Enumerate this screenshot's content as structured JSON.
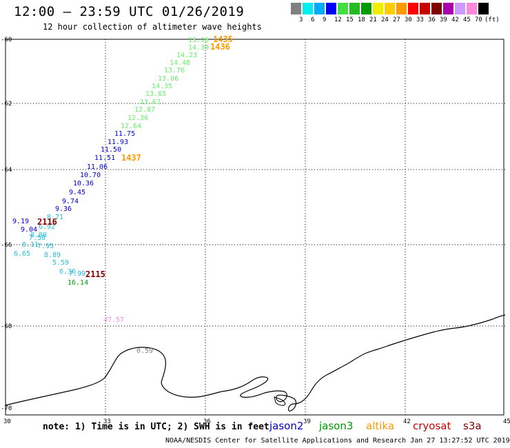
{
  "title": "12:00 – 23:59 UTC 01/26/2019",
  "subtitle": "12 hour collection of altimeter wave heights",
  "colorbar": {
    "unit": "(ft)",
    "ticks": [
      "3",
      "6",
      "9",
      "12",
      "15",
      "18",
      "21",
      "24",
      "27",
      "30",
      "33",
      "36",
      "39",
      "42",
      "45",
      "70"
    ],
    "colors": [
      "#808080",
      "#00eeee",
      "#00aaff",
      "#0000ff",
      "#44dd44",
      "#22bb22",
      "#009900",
      "#eeee00",
      "#ffcc00",
      "#ff9900",
      "#ff0000",
      "#cc0000",
      "#800000",
      "#aa00aa",
      "#cc99ff",
      "#ff88dd",
      "#000000"
    ]
  },
  "axes": {
    "lon_ticks": [
      "30",
      "33",
      "36",
      "39",
      "42",
      "45"
    ],
    "lat_ticks": [
      "-60",
      "-62",
      "-64",
      "-66",
      "-68",
      "-70"
    ]
  },
  "observations": {
    "jason3": [
      "13.96",
      "14.39",
      "14.23",
      "14.48",
      "13.76",
      "13.06",
      "14.35",
      "13.65",
      "13.62",
      "12.87",
      "12.36",
      "12.64"
    ],
    "jason2": [
      "11.75",
      "11.93",
      "11.50",
      "11.51",
      "11.06",
      "10.70",
      "10.36",
      "9.45",
      "9.74",
      "9.36",
      "9.19",
      "9.04"
    ],
    "jason3_low": [
      "8.71",
      "6.92",
      "8.80",
      "7.58",
      "8.11",
      "7.95",
      "6.65",
      "8.89",
      "5.59",
      "6.36",
      "7.99"
    ],
    "green": [
      "16.14"
    ],
    "pink": [
      "47.57"
    ],
    "gray": [
      "0.59"
    ]
  },
  "time_labels": {
    "altika": [
      "1435",
      "1436",
      "1437"
    ],
    "cryosat": [
      "2116",
      "2115"
    ]
  },
  "note": "note: 1) Time is in UTC; 2) SWH is in feet",
  "satellites": [
    {
      "name": "jason2",
      "color": "#0000cc"
    },
    {
      "name": "jason3",
      "color": "#009900"
    },
    {
      "name": "altika",
      "color": "#ff9900"
    },
    {
      "name": "cryosat",
      "color": "#cc0000"
    },
    {
      "name": "s3a",
      "color": "#800000"
    }
  ],
  "footer": "NOAA/NESDIS Center for Satellite Applications and Research   Jan 27 13:27:52 UTC 2019"
}
